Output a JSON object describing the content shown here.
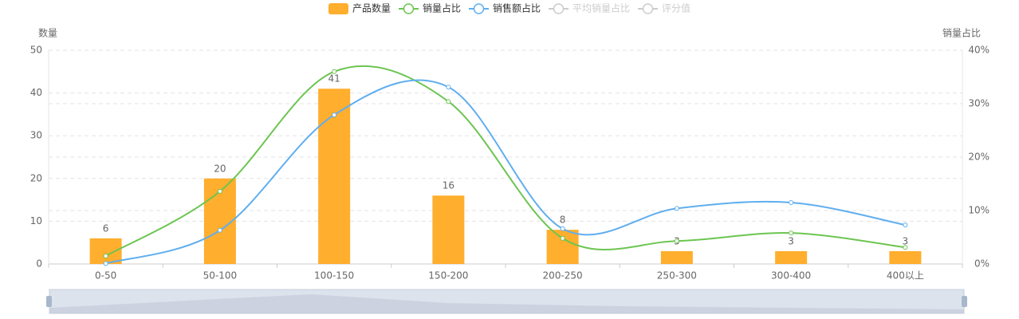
{
  "chart_data": {
    "type": "bar",
    "categories": [
      "0-50",
      "50-100",
      "100-150",
      "150-200",
      "200-250",
      "250-300",
      "300-400",
      "400以上"
    ],
    "series": [
      {
        "name": "产品数量",
        "type": "bar",
        "color": "#ffae2d",
        "axis": "y",
        "values": [
          6,
          20,
          41,
          16,
          8,
          3,
          3,
          3
        ]
      },
      {
        "name": "销量占比",
        "type": "line",
        "color": "#6cc551",
        "axis": "y2",
        "values": [
          1.5,
          13.6,
          36.0,
          30.4,
          4.8,
          4.3,
          5.8,
          3.1
        ]
      },
      {
        "name": "销售额占比",
        "type": "line",
        "color": "#5faeef",
        "axis": "y2",
        "values": [
          0.1,
          6.3,
          27.9,
          33.1,
          6.6,
          10.4,
          11.5,
          7.3
        ]
      }
    ],
    "inactive_series": [
      {
        "name": "平均销量占比"
      },
      {
        "name": "评分值"
      }
    ],
    "y_label": "数量",
    "y2_label": "销量占比",
    "ylim": [
      0,
      50
    ],
    "yticks": [
      0,
      10,
      20,
      30,
      40,
      50
    ],
    "y2lim": [
      0,
      40
    ],
    "y2ticks": [
      {
        "value": 0,
        "label": "0%"
      },
      {
        "value": 10,
        "label": "10%"
      },
      {
        "value": 20,
        "label": "20%"
      },
      {
        "value": 30,
        "label": "30%"
      },
      {
        "value": 40,
        "label": "40%"
      }
    ],
    "grid": true,
    "legend": "top"
  }
}
